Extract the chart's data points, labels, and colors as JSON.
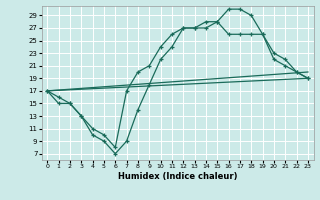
{
  "xlabel": "Humidex (Indice chaleur)",
  "bg_color": "#cceae8",
  "grid_color": "#ffffff",
  "line_color": "#1a6b5a",
  "xlim": [
    -0.5,
    23.5
  ],
  "ylim": [
    6,
    30.5
  ],
  "xticks": [
    0,
    1,
    2,
    3,
    4,
    5,
    6,
    7,
    8,
    9,
    10,
    11,
    12,
    13,
    14,
    15,
    16,
    17,
    18,
    19,
    20,
    21,
    22,
    23
  ],
  "yticks": [
    7,
    9,
    11,
    13,
    15,
    17,
    19,
    21,
    23,
    25,
    27,
    29
  ],
  "line1_x": [
    0,
    1,
    2,
    3,
    4,
    5,
    6,
    7,
    8,
    9,
    10,
    11,
    12,
    13,
    14,
    15,
    16,
    17,
    18,
    19,
    20,
    21,
    22,
    23
  ],
  "line1_y": [
    17,
    15,
    15,
    13,
    10,
    9,
    7,
    9,
    14,
    18,
    22,
    24,
    27,
    27,
    27,
    28,
    30,
    30,
    29,
    26,
    22,
    21,
    20,
    19
  ],
  "line2_x": [
    0,
    1,
    2,
    3,
    4,
    5,
    6,
    7,
    8,
    9,
    10,
    11,
    12,
    13,
    14,
    15,
    16,
    17,
    18,
    19,
    20,
    21,
    22,
    23
  ],
  "line2_y": [
    17,
    16,
    15,
    13,
    11,
    10,
    8,
    17,
    20,
    21,
    24,
    26,
    27,
    27,
    28,
    28,
    26,
    26,
    26,
    26,
    23,
    22,
    20,
    19
  ],
  "line3_x": [
    0,
    23
  ],
  "line3_y": [
    17,
    19
  ],
  "line4_x": [
    0,
    23
  ],
  "line4_y": [
    17,
    20
  ]
}
